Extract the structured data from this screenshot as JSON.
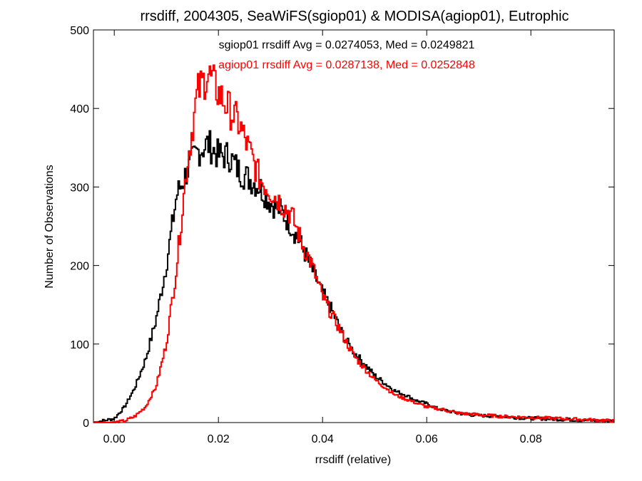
{
  "chart_data": {
    "type": "line",
    "title": "rrsdiff, 2004305, SeaWiFS(sgiop01) & MODISA(agiop01), Eutrophic",
    "xlabel": "rrsdiff (relative)",
    "ylabel": "Number of Observations",
    "xlim": [
      -0.004,
      0.096
    ],
    "ylim": [
      0,
      500
    ],
    "x_ticks": [
      "0.00",
      "0.02",
      "0.04",
      "0.06",
      "0.08"
    ],
    "y_ticks": [
      "0",
      "100",
      "200",
      "300",
      "400",
      "500"
    ],
    "annotations": [
      {
        "text": "sgiop01 rrsdiff Avg = 0.0274053, Med = 0.0249821",
        "color": "#000000"
      },
      {
        "text": "agiop01 rrsdiff Avg = 0.0287138, Med = 0.0252848",
        "color": "#ff0000"
      }
    ],
    "series": [
      {
        "color": "#000000",
        "x": [
          -0.004,
          0.0,
          0.002,
          0.004,
          0.006,
          0.008,
          0.01,
          0.012,
          0.014,
          0.016,
          0.018,
          0.02,
          0.022,
          0.024,
          0.026,
          0.028,
          0.03,
          0.032,
          0.034,
          0.036,
          0.038,
          0.04,
          0.042,
          0.044,
          0.046,
          0.048,
          0.05,
          0.052,
          0.054,
          0.056,
          0.058,
          0.06,
          0.062,
          0.064,
          0.066,
          0.068,
          0.07,
          0.074,
          0.078,
          0.082,
          0.086,
          0.09,
          0.096
        ],
        "y": [
          0,
          5,
          20,
          45,
          80,
          130,
          200,
          290,
          320,
          345,
          355,
          340,
          340,
          320,
          310,
          300,
          280,
          270,
          250,
          225,
          195,
          165,
          140,
          110,
          90,
          75,
          60,
          50,
          40,
          35,
          28,
          24,
          18,
          15,
          12,
          10,
          9,
          8,
          6,
          5,
          4,
          3,
          2
        ]
      },
      {
        "color": "#ff0000",
        "x": [
          -0.004,
          0.0,
          0.002,
          0.004,
          0.006,
          0.008,
          0.01,
          0.012,
          0.014,
          0.016,
          0.018,
          0.02,
          0.022,
          0.024,
          0.026,
          0.028,
          0.03,
          0.032,
          0.034,
          0.036,
          0.038,
          0.04,
          0.042,
          0.044,
          0.046,
          0.048,
          0.05,
          0.052,
          0.054,
          0.056,
          0.058,
          0.06,
          0.062,
          0.064,
          0.066,
          0.068,
          0.07,
          0.074,
          0.078,
          0.082,
          0.086,
          0.09,
          0.096
        ],
        "y": [
          0,
          0,
          2,
          8,
          20,
          45,
          100,
          200,
          330,
          420,
          445,
          420,
          400,
          380,
          345,
          310,
          295,
          280,
          265,
          230,
          200,
          160,
          135,
          110,
          85,
          70,
          55,
          45,
          35,
          30,
          25,
          20,
          18,
          15,
          12,
          11,
          10,
          8,
          7,
          6,
          5,
          4,
          2
        ]
      }
    ]
  }
}
